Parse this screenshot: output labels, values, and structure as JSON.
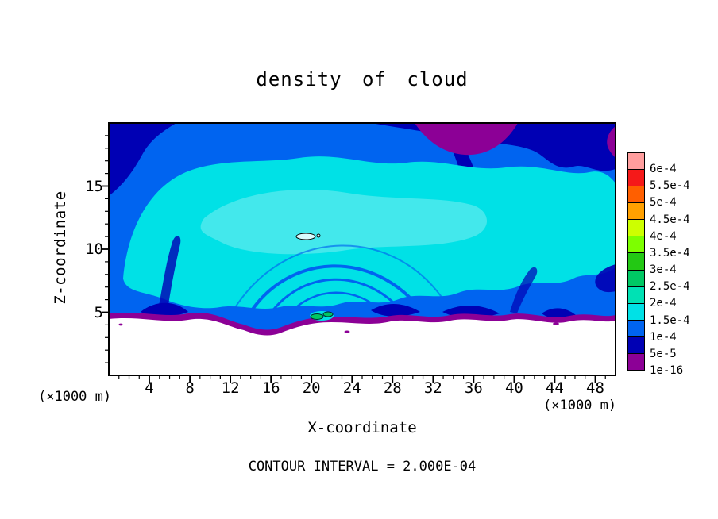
{
  "page": {
    "background": "#ffffff"
  },
  "chart_data": {
    "type": "filled_contour",
    "title": "density of cloud",
    "xlabel": "X-coordinate",
    "ylabel": "Z-coordinate",
    "unit_label_left": "(×1000 m)",
    "unit_label_right": "(×1000 m)",
    "contour_note": "CONTOUR INTERVAL = 2.000E-04",
    "contour_interval": "2.000E-04",
    "x_range": [
      0,
      50
    ],
    "z_range": [
      0,
      20
    ],
    "x_major_ticks": [
      4,
      8,
      12,
      16,
      20,
      24,
      28,
      32,
      36,
      40,
      44,
      48
    ],
    "x_minor_step": 1,
    "z_major_ticks": [
      5,
      10,
      15
    ],
    "z_minor_step": 1,
    "legend": {
      "position": "right",
      "labels": [
        "6e-4",
        "5.5e-4",
        "5e-4",
        "4.5e-4",
        "4e-4",
        "3.5e-4",
        "3e-4",
        "2.5e-4",
        "2e-4",
        "1.5e-4",
        "1e-4",
        "5e-5",
        "1e-16"
      ],
      "colors": [
        "#ff9e9e",
        "#f51919",
        "#ff5f00",
        "#ffa000",
        "#cdff00",
        "#7dff00",
        "#23c814",
        "#00c864",
        "#00e1b4",
        "#00e1e6",
        "#0064f0",
        "#0000b4",
        "#8c0096"
      ]
    },
    "visible_features": [
      "broad cyan region (~1.5e-4 to 2.5e-4) filling most of the domain between z≈5 and z≈18",
      "dark navy patches along the top-left, top-right and right edges with a diagonal streak near x≈36",
      "purple (≈1e-16 to 5e-5) blob at top near x≈31-40 and a thin wavy purple band along the cloud base at z≈4-5",
      "white cloud-free region below z≈4; tiny closed 2e-4 contour blobs near (x≈20, z≈11) and (x≈21, z≈4.5)"
    ]
  }
}
